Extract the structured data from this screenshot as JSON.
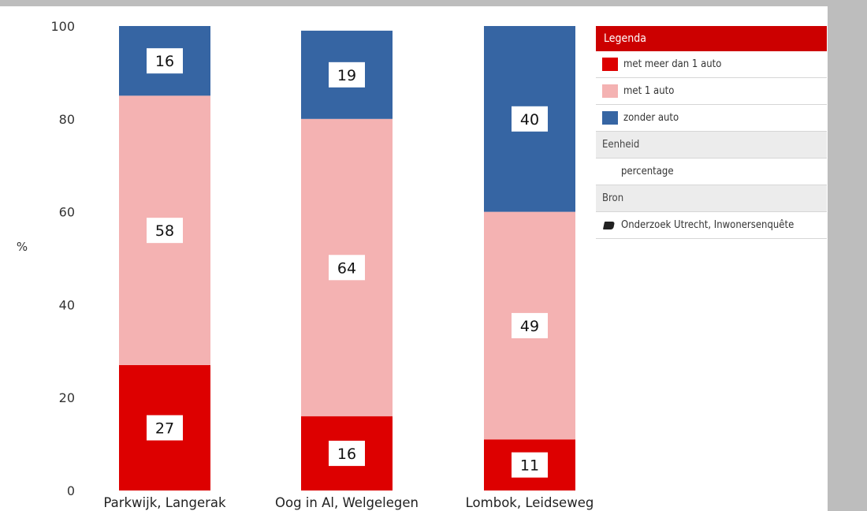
{
  "chart_data": {
    "type": "bar",
    "stacked": true,
    "categories": [
      "Parkwijk, Langerak",
      "Oog in Al, Welgelegen",
      "Lombok, Leidseweg"
    ],
    "series": [
      {
        "name": "met meer dan 1 auto",
        "color": "#dd0000",
        "values": [
          27,
          16,
          11
        ]
      },
      {
        "name": "met 1 auto",
        "color": "#f4b2b2",
        "values": [
          58,
          64,
          49
        ]
      },
      {
        "name": "zonder auto",
        "color": "#3665a3",
        "values": [
          16,
          19,
          40
        ]
      }
    ],
    "ylabel": "%",
    "ylim": [
      0,
      100
    ],
    "yticks": [
      0,
      20,
      40,
      60,
      80,
      100
    ],
    "grid": false,
    "legend_position": "right"
  },
  "legend": {
    "title": "Legenda",
    "title_color": "#cc0000",
    "unit_header": "Eenheid",
    "unit_value": "percentage",
    "source_header": "Bron",
    "source_value": "Onderzoek Utrecht, Inwonersenquête",
    "source_icon": "book-icon"
  }
}
